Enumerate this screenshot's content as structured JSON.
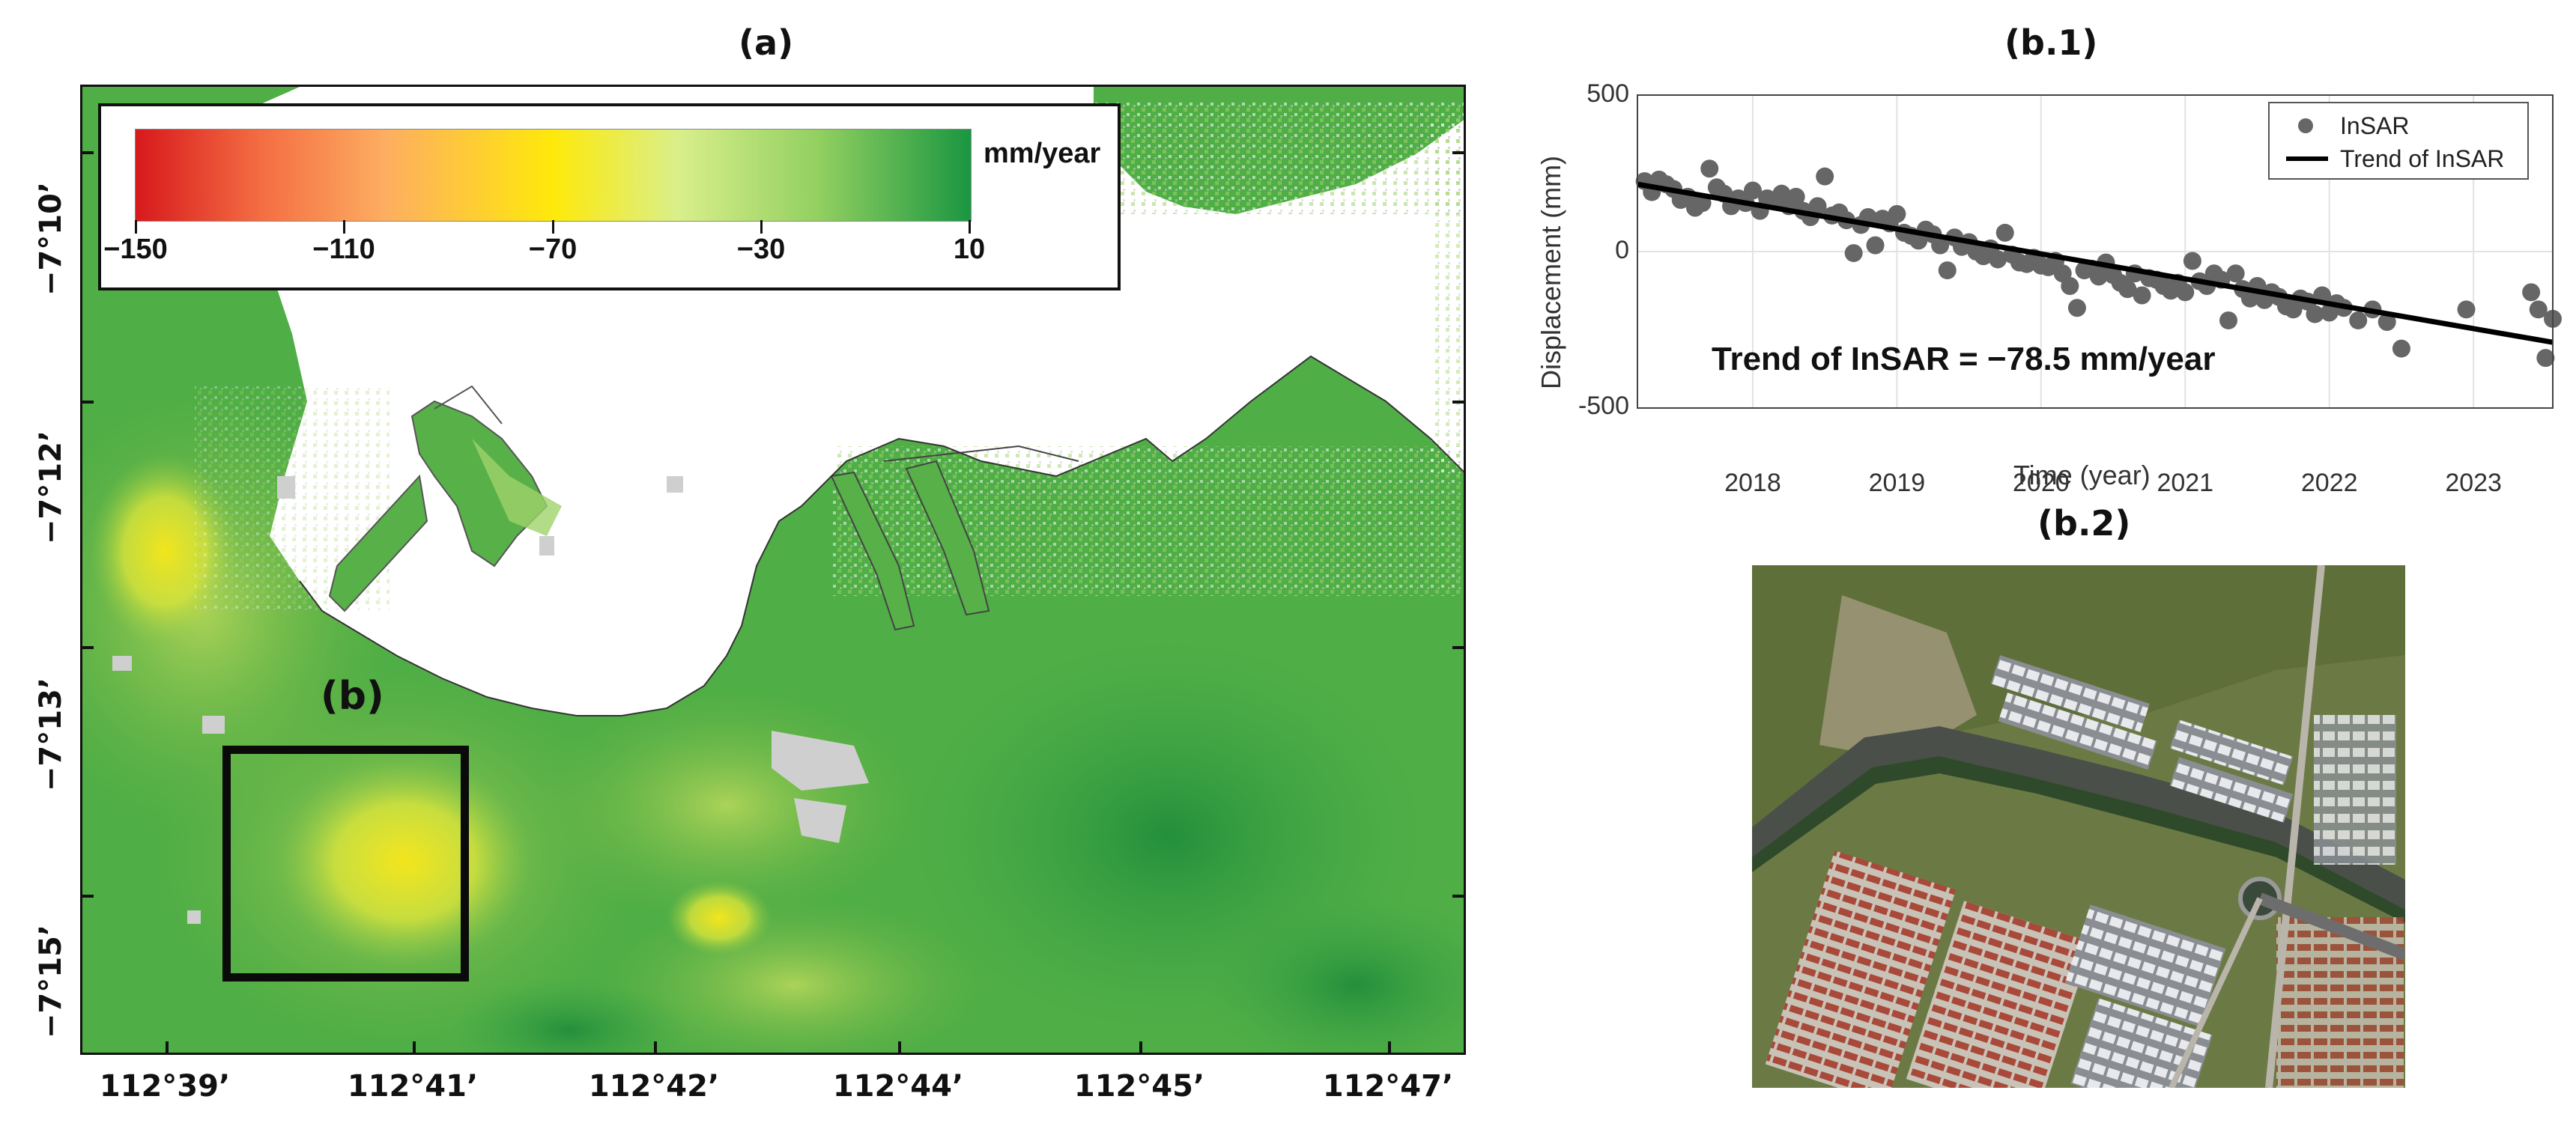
{
  "panel_a": {
    "title": "(a)",
    "colorbar": {
      "unit": "mm/year",
      "ticks": [
        "−150",
        "−110",
        "−70",
        "−30",
        "10"
      ],
      "range": [
        -150,
        10
      ],
      "colors": [
        "#d7191c",
        "#fdae61",
        "#fee90a",
        "#91cf60",
        "#1a9641"
      ]
    },
    "lat_labels": [
      "−7°10’",
      "−7°12’",
      "−7°13’",
      "−7°15’"
    ],
    "lon_labels": [
      "112°39’",
      "112°41’",
      "112°42’",
      "112°44’",
      "112°45’",
      "112°47’"
    ],
    "inset_label": "(b)"
  },
  "panel_b1": {
    "title": "(b.1)",
    "annotation": "Trend of InSAR = −78.5 mm/year",
    "chart_data": {
      "type": "scatter",
      "xlabel": "Time (year)",
      "ylabel": "Displacement (mm)",
      "xlim": [
        2017.2,
        2023.55
      ],
      "ylim": [
        -500,
        500
      ],
      "xticks": [
        "2018",
        "2019",
        "2020",
        "2021",
        "2022",
        "2023"
      ],
      "yticks": [
        "500",
        "0",
        "-500"
      ],
      "grid": true,
      "legend_position": "top-right",
      "series": [
        {
          "name": "InSAR",
          "x": [
            2017.25,
            2017.3,
            2017.35,
            2017.4,
            2017.45,
            2017.5,
            2017.55,
            2017.6,
            2017.65,
            2017.7,
            2017.75,
            2017.8,
            2017.85,
            2017.9,
            2017.95,
            2018.0,
            2018.05,
            2018.1,
            2018.15,
            2018.2,
            2018.25,
            2018.3,
            2018.35,
            2018.4,
            2018.45,
            2018.5,
            2018.55,
            2018.6,
            2018.65,
            2018.7,
            2018.75,
            2018.8,
            2018.85,
            2018.9,
            2018.95,
            2019.0,
            2019.05,
            2019.1,
            2019.15,
            2019.2,
            2019.25,
            2019.3,
            2019.35,
            2019.4,
            2019.45,
            2019.5,
            2019.55,
            2019.6,
            2019.65,
            2019.7,
            2019.75,
            2019.8,
            2019.85,
            2019.9,
            2019.95,
            2020.0,
            2020.05,
            2020.1,
            2020.15,
            2020.2,
            2020.25,
            2020.3,
            2020.35,
            2020.4,
            2020.45,
            2020.5,
            2020.55,
            2020.6,
            2020.65,
            2020.7,
            2020.75,
            2020.8,
            2020.85,
            2020.9,
            2020.95,
            2021.0,
            2021.05,
            2021.1,
            2021.15,
            2021.2,
            2021.25,
            2021.3,
            2021.35,
            2021.4,
            2021.45,
            2021.5,
            2021.55,
            2021.6,
            2021.65,
            2021.7,
            2021.75,
            2021.8,
            2021.85,
            2021.9,
            2021.95,
            2022.0,
            2022.05,
            2022.1,
            2022.2,
            2022.3,
            2022.4,
            2022.5,
            2022.95,
            2023.4,
            2023.45,
            2023.5,
            2023.55
          ],
          "y": [
            225,
            190,
            230,
            215,
            200,
            165,
            175,
            140,
            155,
            265,
            205,
            185,
            145,
            170,
            155,
            195,
            130,
            170,
            160,
            185,
            145,
            175,
            130,
            110,
            145,
            240,
            115,
            125,
            100,
            -5,
            85,
            110,
            20,
            105,
            90,
            120,
            60,
            50,
            35,
            70,
            55,
            20,
            -60,
            45,
            15,
            30,
            0,
            -15,
            10,
            -25,
            60,
            -10,
            -35,
            -40,
            -20,
            -45,
            -50,
            -30,
            -70,
            -110,
            -180,
            -60,
            -55,
            -80,
            -35,
            -75,
            -100,
            -120,
            -70,
            -140,
            -85,
            -90,
            -110,
            -125,
            -100,
            -130,
            -30,
            -95,
            -110,
            -70,
            -90,
            -220,
            -70,
            -120,
            -150,
            -110,
            -155,
            -130,
            -145,
            -175,
            -185,
            -150,
            -160,
            -200,
            -140,
            -195,
            -165,
            -180,
            -220,
            -185,
            -225,
            -310,
            -185,
            -130,
            -185,
            -340,
            -215
          ]
        },
        {
          "name": "Trend of InSAR",
          "x": [
            2017.2,
            2023.55
          ],
          "y": [
            215,
            -290
          ]
        }
      ]
    }
  },
  "panel_b2": {
    "title": "(b.2)"
  }
}
